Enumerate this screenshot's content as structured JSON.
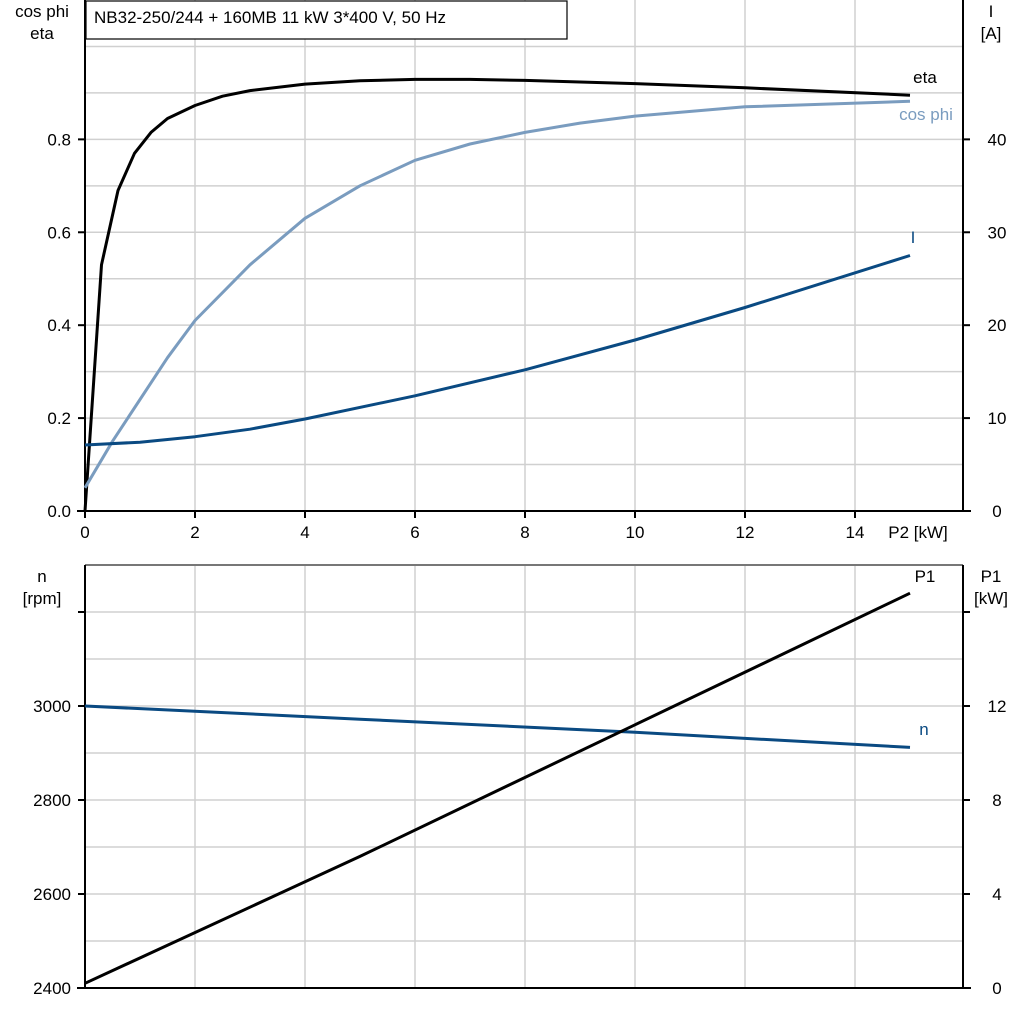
{
  "chart_data": [
    {
      "type": "line",
      "title": "NB32-250/244 + 160MB   11 kW   3*400 V, 50 Hz",
      "xlabel": "P2 [kW]",
      "ylabel_left": [
        "cos phi",
        "eta"
      ],
      "ylabel_right": [
        "I",
        "[A]"
      ],
      "xlim": [
        0,
        16
      ],
      "ylim_left": [
        0,
        1.1
      ],
      "ylim_right": [
        0,
        55
      ],
      "x_ticks": [
        0,
        2,
        4,
        6,
        8,
        10,
        12,
        14
      ],
      "y_left_ticks": [
        "0.0",
        "0.2",
        "0.4",
        "0.6",
        "0.8"
      ],
      "y_right_ticks": [
        "0",
        "10",
        "20",
        "30",
        "40"
      ],
      "grid": true,
      "series": [
        {
          "name": "eta",
          "axis": "left",
          "color": "#000000",
          "x": [
            0,
            0.3,
            0.6,
            0.9,
            1.2,
            1.5,
            2,
            2.5,
            3,
            4,
            5,
            6,
            7,
            8,
            10,
            12,
            15
          ],
          "y": [
            0,
            0.53,
            0.69,
            0.77,
            0.815,
            0.845,
            0.873,
            0.893,
            0.905,
            0.919,
            0.926,
            0.929,
            0.929,
            0.927,
            0.92,
            0.911,
            0.895
          ]
        },
        {
          "name": "cos phi",
          "axis": "left",
          "color": "#7a9cbf",
          "x": [
            0,
            0.5,
            1,
            1.5,
            2,
            3,
            4,
            5,
            6,
            7,
            8,
            9,
            10,
            12,
            15
          ],
          "y": [
            0.05,
            0.15,
            0.24,
            0.33,
            0.41,
            0.53,
            0.63,
            0.7,
            0.755,
            0.79,
            0.815,
            0.835,
            0.85,
            0.87,
            0.882
          ]
        },
        {
          "name": "I",
          "axis": "right",
          "color": "#0a4a82",
          "x": [
            0,
            1,
            2,
            3,
            4,
            6,
            8,
            10,
            12,
            15
          ],
          "y": [
            7.1,
            7.4,
            8.0,
            8.8,
            9.9,
            12.4,
            15.2,
            18.4,
            21.9,
            27.5
          ]
        }
      ]
    },
    {
      "type": "line",
      "xlim": [
        0,
        16
      ],
      "ylabel_left": [
        "n",
        "[rpm]"
      ],
      "ylabel_right": [
        "P1",
        "[kW]"
      ],
      "ylim_left": [
        2400,
        3300
      ],
      "ylim_right": [
        0,
        18
      ],
      "y_left_ticks": [
        "2400",
        "2600",
        "2800",
        "3000"
      ],
      "y_right_ticks": [
        "0",
        "4",
        "8",
        "12"
      ],
      "grid": true,
      "series": [
        {
          "name": "n",
          "axis": "left",
          "color": "#0a4a82",
          "x": [
            0,
            5,
            10,
            15
          ],
          "y": [
            3000,
            2972,
            2944,
            2912
          ]
        },
        {
          "name": "P1",
          "axis": "right",
          "color": "#000000",
          "x": [
            0,
            5,
            10,
            15
          ],
          "y": [
            0.2,
            5.6,
            11.2,
            16.8
          ]
        }
      ]
    }
  ]
}
